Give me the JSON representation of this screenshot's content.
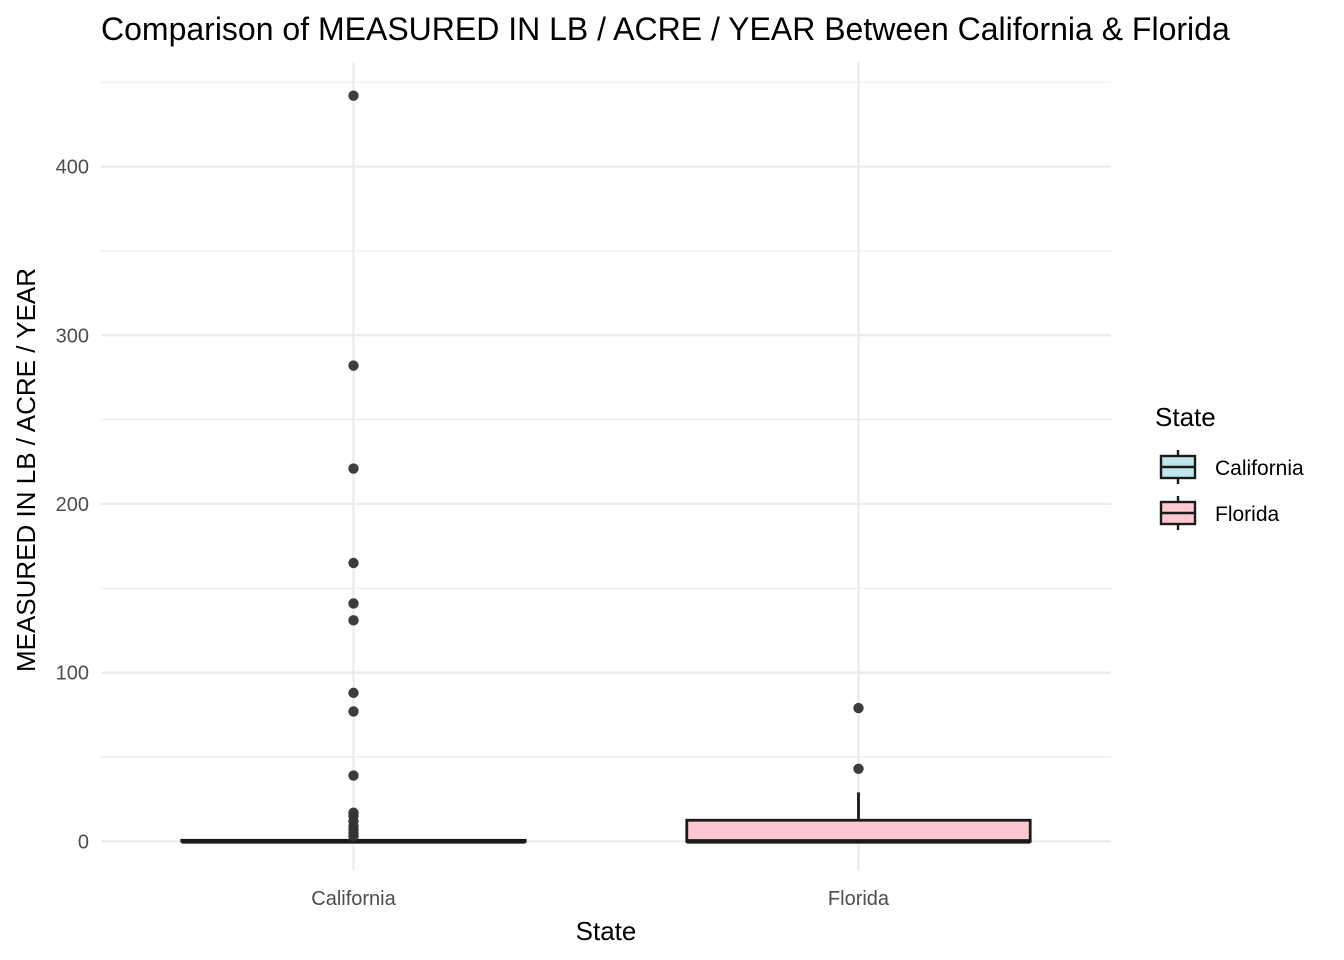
{
  "chart_data": {
    "type": "box",
    "title": "Comparison of MEASURED IN LB / ACRE / YEAR Between California & Florida",
    "xlabel": "State",
    "ylabel": "MEASURED IN LB / ACRE / YEAR",
    "categories": [
      "California",
      "Florida"
    ],
    "ylim": [
      -17,
      462
    ],
    "yticks": [
      0,
      100,
      200,
      300,
      400
    ],
    "grid": true,
    "legend": {
      "title": "State",
      "position": "right",
      "entries": [
        "California",
        "Florida"
      ]
    },
    "colors": {
      "California": "#bfe6ec",
      "Florida": "#ffc8d1",
      "outline": "#1a1a1a",
      "outlier": "#333333"
    },
    "boxes": [
      {
        "name": "California",
        "q1": 0,
        "median": 0,
        "q3": 0.6,
        "whisker_low": 0,
        "whisker_high": 1.5,
        "outliers": [
          442,
          282,
          221,
          165,
          141,
          131,
          88,
          77,
          39,
          17,
          15,
          12,
          9,
          7,
          5,
          3
        ]
      },
      {
        "name": "Florida",
        "q1": 0,
        "median": 0,
        "q3": 12.5,
        "whisker_low": 0,
        "whisker_high": 29,
        "outliers": [
          79,
          43
        ]
      }
    ]
  }
}
